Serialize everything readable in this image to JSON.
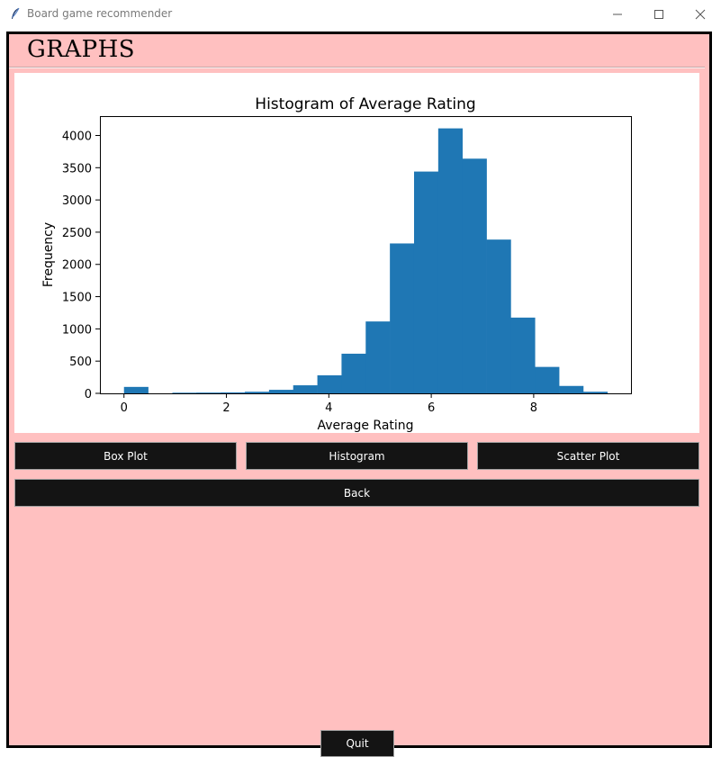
{
  "window": {
    "title": "Board game recommender"
  },
  "header": {
    "title": "GRAPHS"
  },
  "buttons": {
    "box_plot": "Box Plot",
    "histogram": "Histogram",
    "scatter_plot": "Scatter Plot",
    "back": "Back",
    "quit": "Quit"
  },
  "colors": {
    "background": "#ffc0c0",
    "bar": "#1f77b4",
    "button": "#141414"
  },
  "chart_data": {
    "type": "bar",
    "title": "Histogram of Average Rating",
    "xlabel": "Average Rating",
    "ylabel": "Frequency",
    "xlim": [
      -0.47,
      9.9
    ],
    "ylim": [
      0,
      4300
    ],
    "xticks": [
      0,
      2,
      4,
      6,
      8
    ],
    "yticks": [
      0,
      500,
      1000,
      1500,
      2000,
      2500,
      3000,
      3500,
      4000
    ],
    "bin_edges": [
      0,
      0.472,
      0.944,
      1.416,
      1.888,
      2.36,
      2.832,
      3.304,
      3.776,
      4.248,
      4.72,
      5.192,
      5.664,
      6.136,
      6.608,
      7.08,
      7.552,
      8.024,
      8.496,
      8.968,
      9.44
    ],
    "values": [
      100,
      0,
      10,
      12,
      15,
      25,
      55,
      125,
      280,
      615,
      1115,
      2325,
      3440,
      4110,
      3640,
      2385,
      1175,
      410,
      115,
      25
    ],
    "grid": false
  }
}
